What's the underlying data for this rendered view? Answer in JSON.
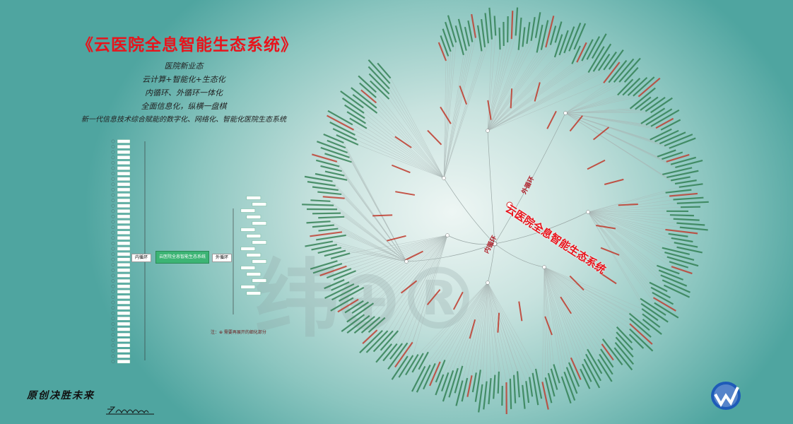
{
  "poster": {
    "title": "《云医院全息智能生态系统》",
    "slogans": [
      "医院新业态",
      "云计算+智能化+生态化",
      "内循环、外循环一体化",
      "全面信息化，纵横一盘棋",
      "新一代信息技术综合赋能的数字化、网络化、智能化医院生态系统"
    ],
    "motto": "原创决胜未来",
    "watermark": "纬⊕®"
  },
  "mindmap": {
    "root": "云医院全息智能生态系统",
    "left_branch": "内循环",
    "right_branch": "外循环",
    "note": "注：⊕ 需要再展开的细化部分"
  },
  "radial_tree": {
    "center": "云医院全息智能生态系统",
    "inner_loop": "内循环",
    "outer_loop": "外循环",
    "colors": {
      "branch_label": "#c0392b",
      "leaf_label": "#2e7d4f",
      "line": "#9aa8a6"
    }
  },
  "colors": {
    "title": "#e8141c",
    "background_edge": "#4fa5a0",
    "root_node": "#3cb474"
  }
}
